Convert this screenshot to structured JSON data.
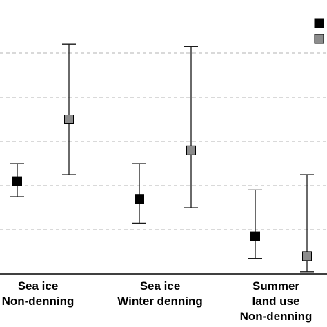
{
  "chart_data": {
    "type": "scatter",
    "title": "",
    "xlabel": "",
    "ylabel": "",
    "ylim": [
      0,
      100
    ],
    "grid": true,
    "legend": "top-right",
    "categories": [
      [
        "Sea ice",
        "Non-denning"
      ],
      [
        "Sea ice",
        "Winter denning"
      ],
      [
        "Summer",
        "land use",
        "Non-denning"
      ]
    ],
    "series": [
      {
        "color": "#000000",
        "values": [
          42,
          34,
          17
        ],
        "lower": [
          35,
          23,
          7
        ],
        "upper": [
          50,
          50,
          38
        ]
      },
      {
        "color": "#8c8c8c",
        "values": [
          70,
          56,
          8
        ],
        "lower": [
          45,
          30,
          1
        ],
        "upper": [
          104,
          103,
          45
        ]
      }
    ]
  }
}
